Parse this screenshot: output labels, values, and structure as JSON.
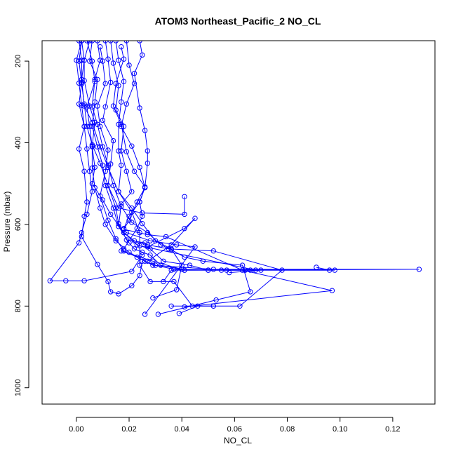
{
  "chart_data": {
    "type": "line",
    "title": "ATOM3 Northeast_Pacific_2 NO_CL",
    "xlabel": "NO_CL",
    "ylabel": "Pressure (mbar)",
    "xlim": [
      -0.013,
      0.136
    ],
    "ylim": [
      1040,
      150
    ],
    "x_ticks": [
      0.0,
      0.02,
      0.04,
      0.06,
      0.08,
      0.1,
      0.12
    ],
    "x_tick_labels": [
      "0.00",
      "0.02",
      "0.04",
      "0.06",
      "0.08",
      "0.10",
      "0.12"
    ],
    "y_ticks": [
      200,
      400,
      600,
      800,
      1000
    ],
    "y_tick_labels": [
      "200",
      "400",
      "600",
      "800",
      "1000"
    ],
    "y_reversed": true,
    "grid": false,
    "line_color": "#0000ff",
    "marker": "open-circle",
    "series": [
      {
        "x": [
          0.001,
          0.002,
          0.002,
          0.001,
          0.003,
          0.004,
          0.005,
          0.006,
          0.004,
          0.002,
          0.001,
          -0.01,
          -0.004,
          0.003,
          0.021,
          0.025
        ],
        "y": [
          150,
          198,
          252,
          305,
          360,
          415,
          470,
          520,
          575,
          620,
          645,
          738,
          738,
          738,
          715,
          675
        ]
      },
      {
        "x": [
          0.002,
          0.003,
          0.003,
          0.005,
          0.007,
          0.006,
          0.006,
          0.007,
          0.009,
          0.011,
          0.015,
          0.02,
          0.026,
          0.03,
          0.037,
          0.041,
          0.05,
          0.055,
          0.064
        ],
        "y": [
          150,
          198,
          248,
          310,
          350,
          408,
          462,
          510,
          560,
          600,
          640,
          668,
          690,
          700,
          710,
          712,
          712,
          712,
          712
        ]
      },
      {
        "x": [
          0.006,
          0.005,
          0.008,
          0.007,
          0.006,
          0.008,
          0.01,
          0.011,
          0.014,
          0.016,
          0.02,
          0.022,
          0.025,
          0.028,
          0.032,
          0.041,
          0.066,
          0.098,
          0.07,
          0.058
        ],
        "y": [
          150,
          200,
          245,
          300,
          360,
          410,
          455,
          505,
          560,
          605,
          645,
          660,
          668,
          675,
          700,
          712,
          712,
          712,
          712,
          718
        ]
      },
      {
        "x": [
          0.009,
          0.01,
          0.011,
          0.008,
          0.009,
          0.012,
          0.011,
          0.009,
          0.012,
          0.015,
          0.018,
          0.023,
          0.029,
          0.052,
          0.13,
          0.036,
          0.033
        ],
        "y": [
          165,
          200,
          255,
          310,
          360,
          418,
          470,
          530,
          590,
          635,
          665,
          680,
          700,
          710,
          710,
          712,
          740
        ]
      },
      {
        "x": [
          0.013,
          0.014,
          0.016,
          0.015,
          0.018,
          0.017,
          0.019,
          0.021,
          0.017,
          0.016,
          0.018,
          0.022,
          0.027,
          0.035,
          0.052,
          0.078,
          0.062,
          0.052,
          0.036
        ],
        "y": [
          150,
          205,
          260,
          320,
          360,
          420,
          470,
          520,
          550,
          605,
          620,
          640,
          650,
          660,
          665,
          712,
          800,
          800,
          800
        ]
      },
      {
        "x": [
          0.017,
          0.018,
          0.015,
          0.014,
          0.017,
          0.019,
          0.022,
          0.026,
          0.024,
          0.02,
          0.018,
          0.019,
          0.028,
          0.038,
          0.045,
          0.026
        ],
        "y": [
          165,
          195,
          255,
          310,
          355,
          422,
          470,
          508,
          545,
          580,
          610,
          620,
          640,
          650,
          655,
          820
        ]
      },
      {
        "x": [
          0.019,
          0.02,
          0.022,
          0.019,
          0.017,
          0.021,
          0.024,
          0.026,
          0.023,
          0.02,
          0.018,
          0.027,
          0.034,
          0.063,
          0.097,
          0.041
        ],
        "y": [
          150,
          210,
          255,
          305,
          360,
          408,
          460,
          510,
          545,
          590,
          612,
          625,
          630,
          712,
          762,
          802
        ]
      },
      {
        "x": [
          0.024,
          0.025,
          0.022,
          0.024,
          0.026,
          0.027,
          0.027,
          0.026,
          0.024,
          0.025,
          0.023,
          0.018,
          0.017,
          0.029,
          0.04,
          0.057,
          0.096,
          0.091
        ],
        "y": [
          150,
          185,
          230,
          315,
          370,
          420,
          450,
          510,
          545,
          580,
          610,
          660,
          665,
          690,
          710,
          712,
          712,
          705
        ]
      },
      {
        "x": [
          0.004,
          0.006,
          0.007,
          0.004,
          0.005,
          0.006,
          0.007,
          0.006,
          0.01,
          0.013,
          0.018,
          0.023,
          0.028,
          0.033,
          0.043,
          0.05,
          0.064,
          0.068,
          0.024
        ],
        "y": [
          150,
          200,
          250,
          312,
          360,
          410,
          460,
          500,
          540,
          575,
          620,
          650,
          660,
          690,
          700,
          712,
          712,
          712,
          652
        ]
      },
      {
        "x": [
          0.008,
          0.009,
          0.007,
          0.006,
          0.008,
          0.01,
          0.012,
          0.014,
          0.017,
          0.021,
          0.027,
          0.032,
          0.036,
          0.041,
          0.048,
          0.063,
          0.066,
          0.053,
          0.031
        ],
        "y": [
          150,
          198,
          245,
          312,
          355,
          410,
          455,
          505,
          556,
          595,
          620,
          650,
          662,
          680,
          690,
          700,
          765,
          785,
          820
        ]
      },
      {
        "x": [
          0.011,
          0.012,
          0.013,
          0.011,
          0.01,
          0.014,
          0.013,
          0.012,
          0.015,
          0.016,
          0.019,
          0.026,
          0.027,
          0.041,
          0.045,
          0.036,
          0.027
        ],
        "y": [
          150,
          195,
          252,
          312,
          345,
          395,
          452,
          505,
          560,
          598,
          638,
          645,
          655,
          610,
          585,
          650,
          690
        ]
      },
      {
        "x": [
          0.002,
          0.001,
          0.002,
          0.003,
          0.004,
          0.006,
          0.009,
          0.012,
          0.016,
          0.025,
          0.041,
          0.041
        ],
        "y": [
          150,
          200,
          256,
          305,
          360,
          405,
          450,
          505,
          560,
          572,
          575,
          532
        ]
      },
      {
        "x": [
          0.015,
          0.016,
          0.018,
          0.017,
          0.016,
          0.016,
          0.017,
          0.016,
          0.021,
          0.024,
          0.024,
          0.028,
          0.037,
          0.044,
          0.052,
          0.046,
          0.039
        ],
        "y": [
          150,
          198,
          250,
          300,
          355,
          420,
          455,
          520,
          570,
          620,
          700,
          740,
          740,
          800,
          800,
          800,
          818
        ]
      },
      {
        "x": [
          0.005,
          0.003,
          0.002,
          0.003,
          0.006,
          0.009,
          0.012,
          0.016,
          0.021,
          0.025,
          0.03,
          0.036,
          0.04,
          0.038,
          0.029
        ],
        "y": [
          150,
          198,
          245,
          310,
          350,
          410,
          460,
          520,
          560,
          598,
          640,
          660,
          700,
          760,
          780
        ]
      },
      {
        "x": [
          0.002,
          0.0,
          0.001,
          0.002,
          0.003,
          0.001,
          0.003,
          0.004,
          0.003,
          0.002,
          0.008,
          0.012,
          0.013,
          0.016,
          0.021,
          0.024,
          0.025
        ],
        "y": [
          150,
          198,
          254,
          308,
          360,
          415,
          470,
          545,
          580,
          630,
          698,
          740,
          765,
          770,
          750,
          725,
          690
        ]
      }
    ]
  }
}
